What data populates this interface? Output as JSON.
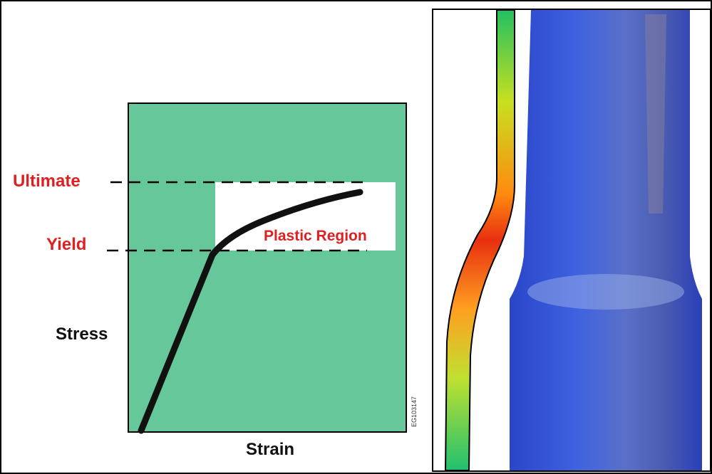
{
  "diagram": {
    "ultimate_label": "Ultimate",
    "yield_label": "Yield",
    "y_axis_label": "Stress",
    "x_axis_label": "Strain",
    "region_label": "Plastic Region",
    "code": "EG103147"
  }
}
